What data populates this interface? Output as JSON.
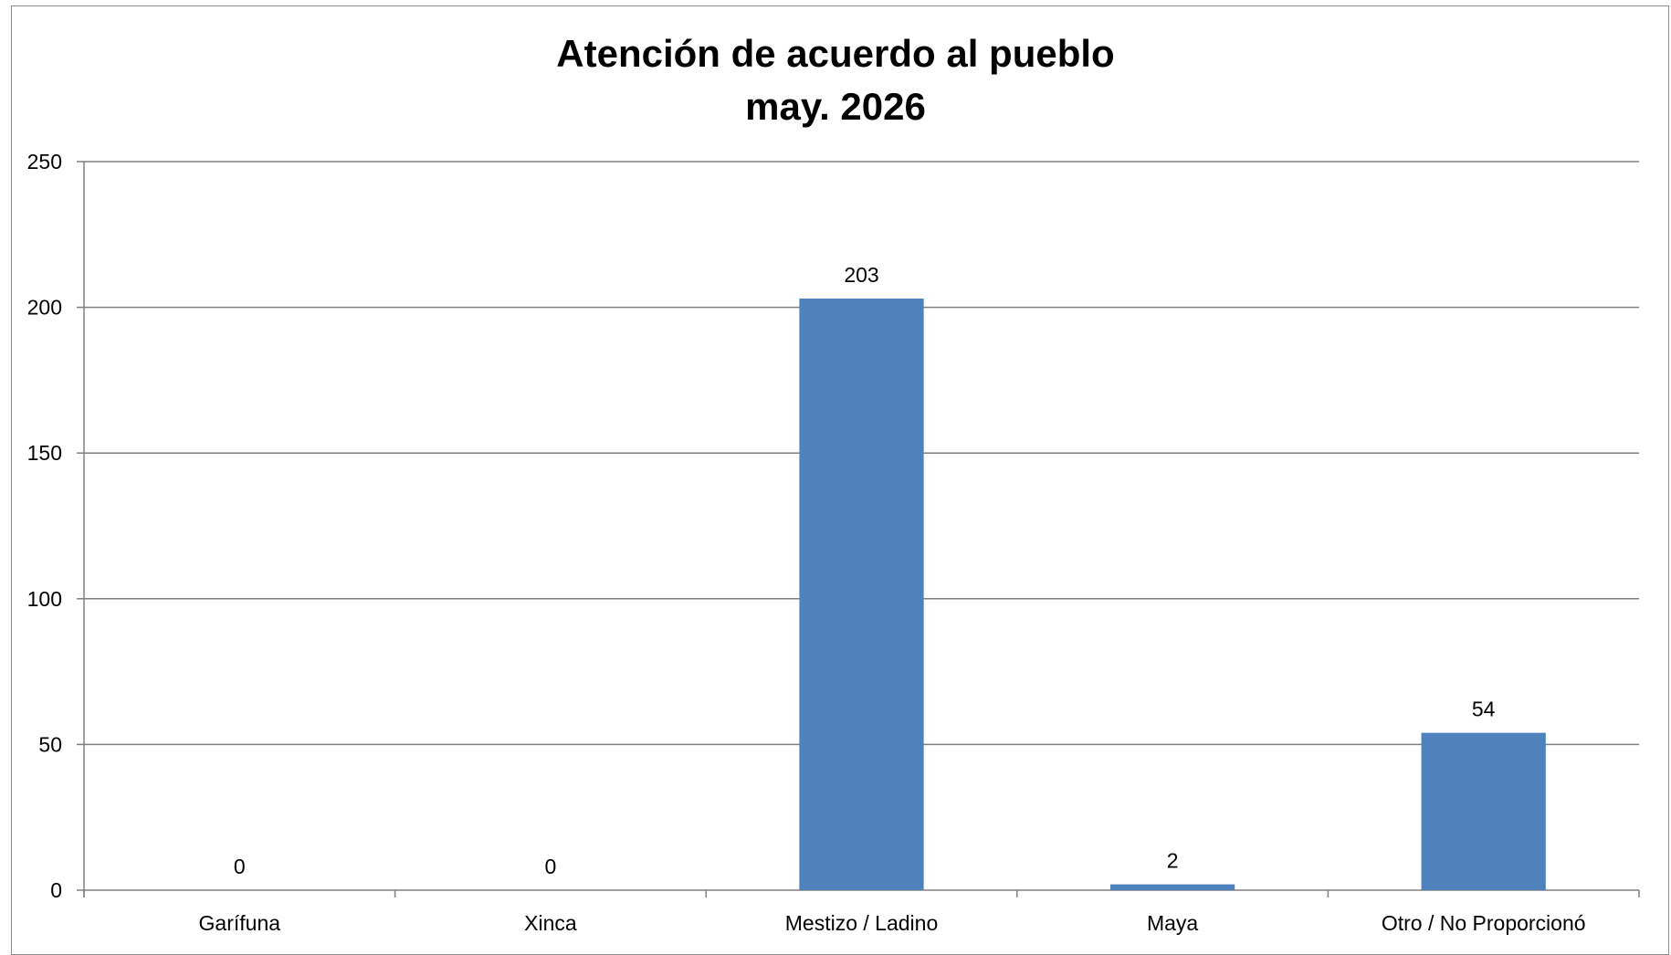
{
  "chart_data": {
    "type": "bar",
    "title": "Atención de acuerdo al pueblo",
    "subtitle": "may. 2026",
    "categories": [
      "Garífuna",
      "Xinca",
      "Mestizo / Ladino",
      "Maya",
      "Otro / No Proporcionó"
    ],
    "values": [
      0,
      0,
      203,
      2,
      54
    ],
    "xlabel": "",
    "ylabel": "",
    "ylim": [
      0,
      250
    ],
    "yticks": [
      0,
      50,
      100,
      150,
      200,
      250
    ],
    "grid": true,
    "legend": "none",
    "data_labels": true,
    "colors": {
      "bar": "#4f81bd",
      "grid": "#808080",
      "axis": "#808080"
    }
  }
}
